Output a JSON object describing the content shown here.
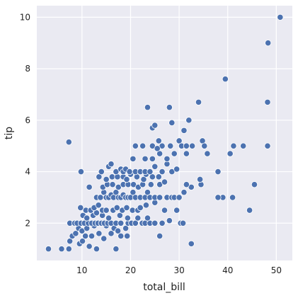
{
  "chart_data": {
    "type": "scatter",
    "title": "",
    "xlabel": "total_bill",
    "ylabel": "tip",
    "xlim": [
      0.7,
      53.3
    ],
    "ylim": [
      0.55,
      10.45
    ],
    "xticks": [
      10,
      20,
      30,
      40,
      50
    ],
    "yticks": [
      2,
      4,
      6,
      8,
      10
    ],
    "grid": true,
    "colors": {
      "background": "#EAEAF2",
      "grid": "#FFFFFF",
      "point": "#4C72B0",
      "point_edge": "#FFFFFF"
    },
    "series": [
      {
        "points": [
          [
            3.1,
            1.0
          ],
          [
            5.8,
            1.0
          ],
          [
            7.3,
            1.0
          ],
          [
            9.5,
            1.2
          ],
          [
            10.1,
            1.3
          ],
          [
            11.5,
            1.1
          ],
          [
            13.0,
            1.0
          ],
          [
            17.0,
            1.0
          ],
          [
            19.3,
            1.5
          ],
          [
            26.0,
            1.5
          ],
          [
            32.5,
            1.2
          ],
          [
            7.5,
            1.3
          ],
          [
            8.0,
            1.5
          ],
          [
            8.7,
            1.6
          ],
          [
            9.3,
            1.8
          ],
          [
            10.0,
            1.7
          ],
          [
            10.7,
            1.5
          ],
          [
            11.0,
            1.8
          ],
          [
            12.0,
            1.5
          ],
          [
            12.5,
            1.9
          ],
          [
            13.5,
            1.6
          ],
          [
            14.5,
            1.4
          ],
          [
            15.0,
            1.9
          ],
          [
            16.0,
            1.6
          ],
          [
            16.6,
            1.8
          ],
          [
            17.4,
            1.7
          ],
          [
            18.0,
            1.5
          ],
          [
            19.0,
            1.8
          ],
          [
            7.5,
            2.0
          ],
          [
            8.5,
            2.0
          ],
          [
            9.0,
            2.0
          ],
          [
            9.8,
            2.0
          ],
          [
            10.5,
            2.0
          ],
          [
            11.3,
            2.0
          ],
          [
            12.0,
            2.0
          ],
          [
            12.7,
            2.0
          ],
          [
            13.3,
            2.0
          ],
          [
            14.0,
            2.0
          ],
          [
            14.6,
            2.0
          ],
          [
            15.3,
            2.0
          ],
          [
            16.0,
            2.0
          ],
          [
            17.0,
            2.0
          ],
          [
            18.0,
            2.0
          ],
          [
            19.5,
            2.0
          ],
          [
            20.2,
            2.0
          ],
          [
            21.0,
            2.0
          ],
          [
            22.4,
            2.0
          ],
          [
            23.0,
            2.0
          ],
          [
            24.0,
            2.0
          ],
          [
            25.0,
            2.0
          ],
          [
            26.5,
            2.0
          ],
          [
            28.0,
            2.1
          ],
          [
            30.3,
            2.0
          ],
          [
            30.8,
            2.0
          ],
          [
            10.2,
            2.3
          ],
          [
            11.0,
            2.2
          ],
          [
            12.3,
            2.3
          ],
          [
            13.0,
            2.4
          ],
          [
            14.2,
            2.3
          ],
          [
            15.5,
            2.2
          ],
          [
            17.8,
            2.3
          ],
          [
            19.4,
            2.2
          ],
          [
            21.5,
            2.2
          ],
          [
            23.5,
            2.2
          ],
          [
            9.7,
            2.6
          ],
          [
            10.8,
            2.5
          ],
          [
            11.8,
            2.5
          ],
          [
            12.5,
            2.6
          ],
          [
            13.4,
            2.7
          ],
          [
            14.2,
            2.5
          ],
          [
            15.0,
            2.5
          ],
          [
            16.4,
            2.5
          ],
          [
            17.2,
            2.6
          ],
          [
            18.3,
            2.5
          ],
          [
            19.2,
            2.6
          ],
          [
            20.4,
            2.5
          ],
          [
            21.5,
            2.5
          ],
          [
            22.0,
            2.6
          ],
          [
            23.2,
            2.7
          ],
          [
            25.0,
            2.8
          ],
          [
            27.0,
            2.5
          ],
          [
            29.5,
            2.5
          ],
          [
            11.5,
            3.4
          ],
          [
            13.0,
            3.0
          ],
          [
            13.8,
            3.0
          ],
          [
            14.5,
            3.2
          ],
          [
            15.0,
            3.0
          ],
          [
            15.5,
            3.0
          ],
          [
            16.0,
            3.1
          ],
          [
            16.5,
            3.0
          ],
          [
            17.0,
            3.2
          ],
          [
            17.5,
            3.0
          ],
          [
            18.0,
            3.0
          ],
          [
            18.5,
            3.1
          ],
          [
            19.0,
            3.0
          ],
          [
            19.5,
            3.0
          ],
          [
            20.0,
            3.0
          ],
          [
            20.5,
            3.2
          ],
          [
            21.0,
            3.0
          ],
          [
            22.0,
            3.0
          ],
          [
            23.0,
            3.0
          ],
          [
            23.5,
            3.2
          ],
          [
            24.0,
            3.0
          ],
          [
            25.0,
            3.0
          ],
          [
            26.0,
            3.0
          ],
          [
            27.5,
            3.0
          ],
          [
            28.5,
            3.0
          ],
          [
            29.0,
            3.0
          ],
          [
            30.0,
            3.0
          ],
          [
            31.0,
            3.2
          ],
          [
            32.5,
            3.4
          ],
          [
            14.3,
            3.4
          ],
          [
            15.2,
            3.5
          ],
          [
            16.3,
            3.5
          ],
          [
            17.5,
            3.4
          ],
          [
            18.5,
            3.5
          ],
          [
            19.5,
            3.5
          ],
          [
            20.6,
            3.5
          ],
          [
            21.6,
            3.4
          ],
          [
            22.5,
            3.5
          ],
          [
            24.2,
            3.5
          ],
          [
            26.0,
            3.5
          ],
          [
            27.0,
            3.6
          ],
          [
            31.5,
            3.5
          ],
          [
            34.5,
            3.5
          ],
          [
            34.3,
            3.7
          ],
          [
            13.5,
            3.8
          ],
          [
            15.0,
            3.7
          ],
          [
            16.2,
            3.8
          ],
          [
            17.3,
            3.8
          ],
          [
            18.5,
            3.8
          ],
          [
            19.2,
            3.7
          ],
          [
            20.0,
            3.9
          ],
          [
            21.3,
            3.8
          ],
          [
            22.7,
            3.7
          ],
          [
            23.2,
            3.9
          ],
          [
            24.5,
            3.8
          ],
          [
            25.8,
            3.8
          ],
          [
            9.8,
            4.0
          ],
          [
            14.0,
            4.0
          ],
          [
            15.5,
            4.2
          ],
          [
            16.0,
            4.3
          ],
          [
            17.0,
            4.0
          ],
          [
            18.0,
            4.1
          ],
          [
            18.5,
            4.0
          ],
          [
            19.0,
            4.1
          ],
          [
            19.8,
            4.0
          ],
          [
            21.0,
            4.0
          ],
          [
            22.0,
            4.0
          ],
          [
            23.0,
            4.0
          ],
          [
            24.0,
            4.0
          ],
          [
            25.0,
            4.2
          ],
          [
            26.5,
            4.0
          ],
          [
            27.5,
            4.3
          ],
          [
            28.5,
            4.0
          ],
          [
            29.5,
            4.1
          ],
          [
            38.0,
            4.0
          ],
          [
            45.5,
            3.5
          ],
          [
            39.0,
            3.0
          ],
          [
            41.0,
            3.0
          ],
          [
            38.0,
            3.0
          ],
          [
            44.5,
            2.5
          ],
          [
            20.5,
            4.5
          ],
          [
            23.0,
            4.5
          ],
          [
            24.5,
            4.5
          ],
          [
            26.0,
            4.7
          ],
          [
            27.5,
            4.5
          ],
          [
            29.0,
            4.7
          ],
          [
            31.5,
            4.7
          ],
          [
            35.8,
            4.7
          ],
          [
            21.0,
            5.0
          ],
          [
            22.5,
            5.0
          ],
          [
            24.5,
            5.0
          ],
          [
            25.8,
            5.2
          ],
          [
            26.5,
            5.0
          ],
          [
            28.2,
            5.0
          ],
          [
            30.0,
            5.2
          ],
          [
            30.5,
            5.0
          ],
          [
            31.5,
            5.0
          ],
          [
            32.7,
            5.0
          ],
          [
            34.8,
            5.2
          ],
          [
            35.2,
            5.0
          ],
          [
            40.5,
            4.7
          ],
          [
            41.2,
            5.0
          ],
          [
            43.2,
            5.0
          ],
          [
            48.2,
            5.0
          ],
          [
            7.3,
            5.15
          ],
          [
            25.5,
            4.9
          ],
          [
            24.5,
            5.7
          ],
          [
            25.0,
            5.8
          ],
          [
            28.5,
            5.9
          ],
          [
            31.0,
            5.6
          ],
          [
            32.0,
            6.0
          ],
          [
            34.0,
            6.7
          ],
          [
            23.5,
            6.5
          ],
          [
            28.0,
            6.5
          ],
          [
            39.5,
            7.6
          ],
          [
            48.2,
            6.7
          ],
          [
            48.3,
            9.0
          ],
          [
            50.8,
            10.0
          ]
        ]
      }
    ]
  }
}
